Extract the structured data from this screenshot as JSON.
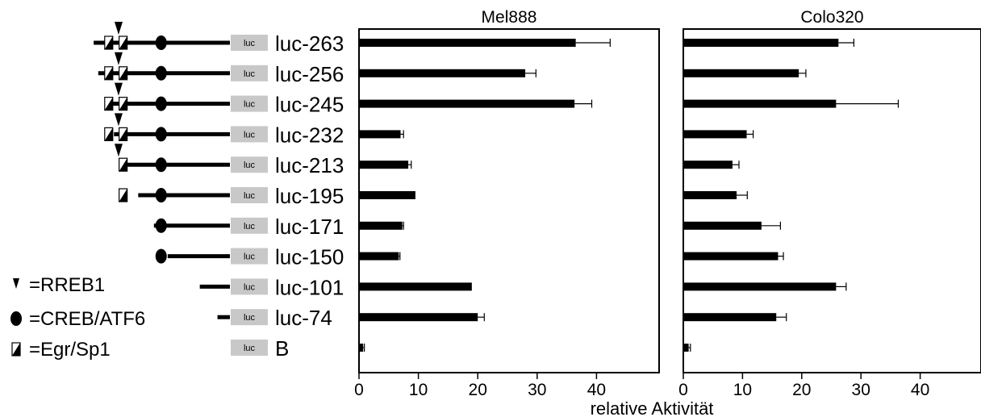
{
  "legend": [
    {
      "symbol": "RREB1",
      "label": "=RREB1"
    },
    {
      "symbol": "CREB/ATF6",
      "label": "=CREB/ATF6"
    },
    {
      "symbol": "Egr/Sp1",
      "label": "=Egr/Sp1"
    }
  ],
  "reporter_label": "luc",
  "constructs": [
    {
      "name": "luc-263",
      "line_start": -263,
      "egr": [
        -240,
        -218
      ],
      "rreb": -225,
      "creb": true
    },
    {
      "name": "luc-256",
      "line_start": -256,
      "egr": [
        -240,
        -218
      ],
      "rreb": -225,
      "creb": true
    },
    {
      "name": "luc-245",
      "line_start": -245,
      "egr": [
        -240,
        -218
      ],
      "rreb": -225,
      "creb": true
    },
    {
      "name": "luc-232",
      "line_start": -232,
      "egr": [
        -240,
        -218
      ],
      "rreb": -225,
      "creb": true
    },
    {
      "name": "luc-213",
      "line_start": -213,
      "egr": [
        -218
      ],
      "rreb": -225,
      "creb": true
    },
    {
      "name": "luc-195",
      "line_start": -195,
      "egr": [
        -218
      ],
      "rreb": null,
      "creb": true
    },
    {
      "name": "luc-171",
      "line_start": -171,
      "egr": [],
      "rreb": null,
      "creb": true
    },
    {
      "name": "luc-150",
      "line_start": -150,
      "egr": [],
      "rreb": null,
      "creb": true
    },
    {
      "name": "luc-101",
      "line_start": -101,
      "egr": [],
      "rreb": null,
      "creb": false
    },
    {
      "name": "luc-74",
      "line_start": -74,
      "egr": [],
      "rreb": null,
      "creb": false
    },
    {
      "name": "B",
      "line_start": null,
      "egr": [],
      "rreb": null,
      "creb": false
    }
  ],
  "chart_data": [
    {
      "type": "bar",
      "orientation": "horizontal",
      "title": "Mel888",
      "categories": [
        "luc-263",
        "luc-256",
        "luc-245",
        "luc-232",
        "luc-213",
        "luc-195",
        "luc-171",
        "luc-150",
        "luc-101",
        "luc-74",
        "B"
      ],
      "values": [
        36.5,
        28.0,
        36.3,
        7.0,
        8.3,
        9.5,
        7.3,
        6.7,
        19.0,
        20.0,
        0.7
      ],
      "errors": [
        5.8,
        1.8,
        2.9,
        0.5,
        0.5,
        0.0,
        0.2,
        0.2,
        0.0,
        1.1,
        0.2
      ],
      "xlim": [
        0,
        50
      ],
      "xticks": [
        0,
        10,
        20,
        30,
        40
      ],
      "grid": false
    },
    {
      "type": "bar",
      "orientation": "horizontal",
      "title": "Colo320",
      "categories": [
        "luc-263",
        "luc-256",
        "luc-245",
        "luc-232",
        "luc-213",
        "luc-195",
        "luc-171",
        "luc-150",
        "luc-101",
        "luc-74",
        "B"
      ],
      "values": [
        26.2,
        19.5,
        25.8,
        10.7,
        8.3,
        9.0,
        13.2,
        16.0,
        25.8,
        15.7,
        0.9
      ],
      "errors": [
        2.6,
        1.2,
        10.5,
        1.1,
        1.1,
        1.8,
        3.2,
        0.9,
        1.7,
        1.7,
        0.3
      ],
      "xlim": [
        0,
        50
      ],
      "xticks": [
        0,
        10,
        20,
        30,
        40
      ],
      "grid": false
    }
  ],
  "xlabel": "relative Aktivität"
}
